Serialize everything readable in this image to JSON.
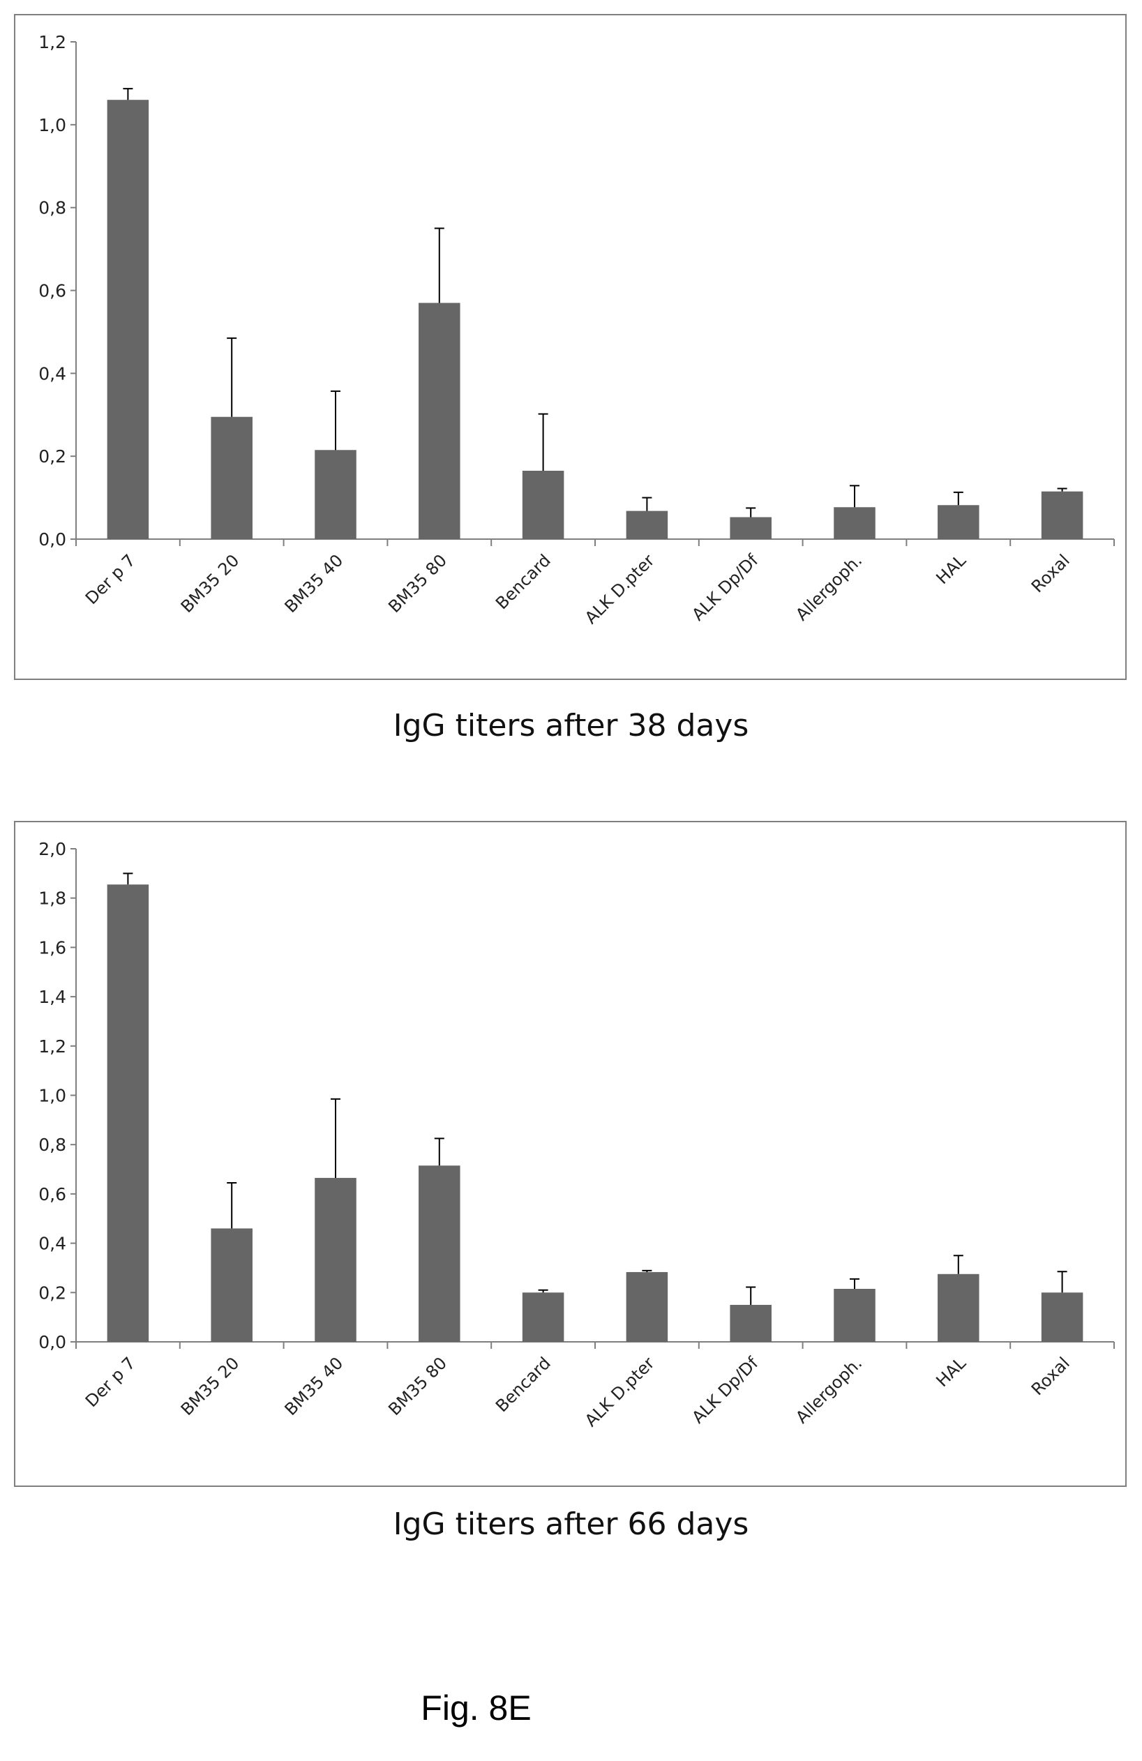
{
  "chart_data": [
    {
      "type": "bar",
      "title": "IgG titers after 38 days",
      "categories": [
        "Der p 7",
        "BM35 20",
        "BM35 40",
        "BM35 80",
        "Bencard",
        "ALK D.pter",
        "ALK Dp/Df",
        "Allergoph.",
        "HAL",
        "Roxal"
      ],
      "values": [
        1.06,
        0.295,
        0.215,
        0.57,
        0.165,
        0.068,
        0.053,
        0.077,
        0.082,
        0.115
      ],
      "error_upper": [
        1.087,
        0.485,
        0.357,
        0.75,
        0.302,
        0.1,
        0.075,
        0.129,
        0.113,
        0.122
      ],
      "ylim": [
        0,
        1.2
      ],
      "yticks": [
        "0,0",
        "0,2",
        "0,4",
        "0,6",
        "0,8",
        "1,0",
        "1,2"
      ],
      "grid": false,
      "legend": "none",
      "bar_color": "#666666"
    },
    {
      "type": "bar",
      "title": "IgG titers after 66 days",
      "categories": [
        "Der p 7",
        "BM35 20",
        "BM35 40",
        "BM35 80",
        "Bencard",
        "ALK D.pter",
        "ALK Dp/Df",
        "Allergoph.",
        "HAL",
        "Roxal"
      ],
      "values": [
        1.855,
        0.46,
        0.665,
        0.715,
        0.2,
        0.283,
        0.15,
        0.215,
        0.275,
        0.2
      ],
      "error_upper": [
        1.9,
        0.645,
        0.985,
        0.825,
        0.21,
        0.289,
        0.222,
        0.255,
        0.35,
        0.285
      ],
      "ylim": [
        0,
        2.0
      ],
      "yticks": [
        "0,0",
        "0,2",
        "0,4",
        "0,6",
        "0,8",
        "1,0",
        "1,2",
        "1,4",
        "1,6",
        "1,8",
        "2,0"
      ],
      "grid": false,
      "legend": "none",
      "bar_color": "#666666"
    }
  ],
  "captions": {
    "chart1": "IgG titers after 38 days",
    "chart2": "IgG titers after 66 days"
  },
  "figure_label": "Fig. 8E"
}
